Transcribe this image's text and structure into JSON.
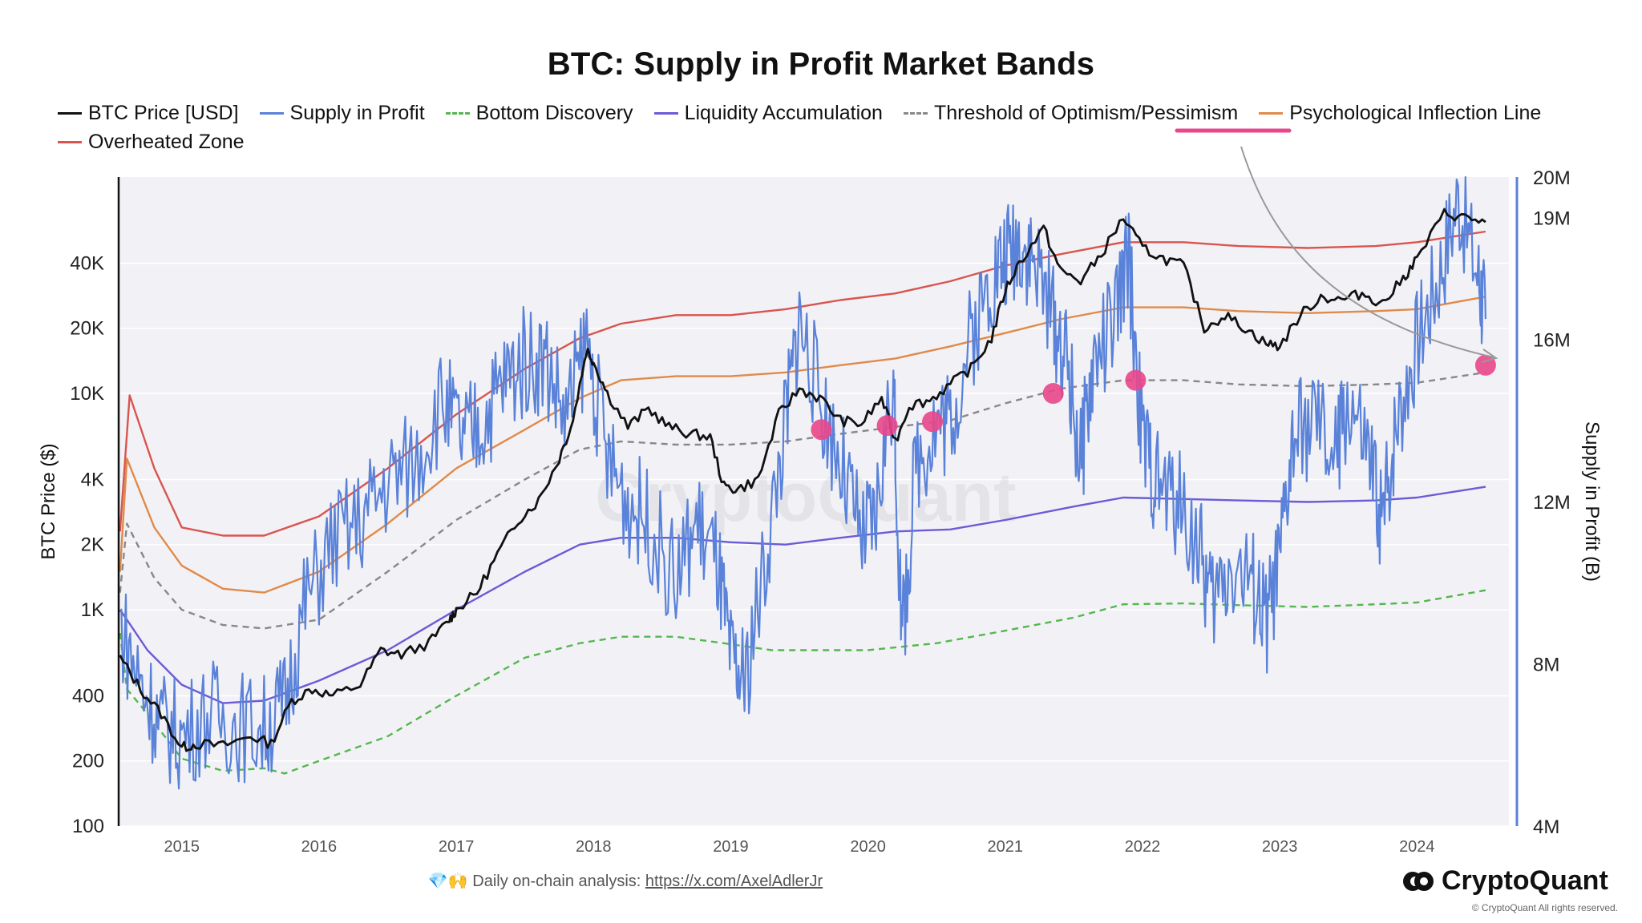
{
  "chart_data": {
    "type": "line",
    "title": "BTC: Supply in Profit Market Bands",
    "ylabel_left": "BTC Price ($)",
    "ylabel_right": "Supply in Profit (B)",
    "y_left_scale": "log",
    "y_left_ticks": [
      "40K",
      "20K",
      "10K",
      "4K",
      "2K",
      "1K",
      "400",
      "200",
      "100"
    ],
    "y_left_tick_values": [
      40000,
      20000,
      10000,
      4000,
      2000,
      1000,
      400,
      200,
      100
    ],
    "y_left_range": [
      100,
      100000
    ],
    "y_right_ticks": [
      "20M",
      "19M",
      "16M",
      "12M",
      "8M",
      "4M"
    ],
    "y_right_tick_values": [
      20000000,
      19000000,
      16000000,
      12000000,
      8000000,
      4000000
    ],
    "y_right_range": [
      4000000,
      20000000
    ],
    "x_ticks": [
      "2015",
      "2016",
      "2017",
      "2018",
      "2019",
      "2020",
      "2021",
      "2022",
      "2023",
      "2024"
    ],
    "x_range": [
      2014.54,
      2024.67
    ],
    "grid": true,
    "legend_position": "top-left",
    "watermark": "CryptoQuant",
    "series": [
      {
        "name": "BTC Price [USD]",
        "color": "#111111",
        "dash": "solid",
        "x": [
          2014.55,
          2014.7,
          2014.85,
          2015.0,
          2015.1,
          2015.3,
          2015.5,
          2015.65,
          2015.8,
          2015.95,
          2016.1,
          2016.3,
          2016.45,
          2016.6,
          2016.8,
          2016.95,
          2017.0,
          2017.15,
          2017.3,
          2017.45,
          2017.6,
          2017.75,
          2017.85,
          2017.95,
          2018.0,
          2018.1,
          2018.25,
          2018.4,
          2018.55,
          2018.7,
          2018.85,
          2018.95,
          2019.05,
          2019.2,
          2019.35,
          2019.5,
          2019.65,
          2019.8,
          2019.95,
          2020.1,
          2020.2,
          2020.3,
          2020.45,
          2020.6,
          2020.75,
          2020.9,
          2021.0,
          2021.1,
          2021.28,
          2021.4,
          2021.55,
          2021.7,
          2021.86,
          2022.0,
          2022.15,
          2022.3,
          2022.45,
          2022.6,
          2022.75,
          2022.9,
          2023.0,
          2023.15,
          2023.3,
          2023.45,
          2023.6,
          2023.75,
          2023.9,
          2024.0,
          2024.2,
          2024.35,
          2024.5
        ],
        "y": [
          600,
          430,
          330,
          230,
          240,
          235,
          260,
          240,
          380,
          430,
          400,
          450,
          650,
          620,
          700,
          900,
          1000,
          1200,
          1800,
          2600,
          3200,
          5000,
          7500,
          16000,
          14000,
          10000,
          7000,
          8500,
          7000,
          6500,
          6300,
          3700,
          3600,
          4000,
          8000,
          10500,
          9500,
          7500,
          7200,
          9500,
          6000,
          8800,
          9300,
          11000,
          13000,
          18000,
          30000,
          40000,
          58000,
          37000,
          33000,
          44000,
          65000,
          47000,
          42000,
          39000,
          20000,
          23000,
          20000,
          17000,
          16500,
          23000,
          28000,
          27000,
          29000,
          26000,
          34000,
          42000,
          68000,
          65000,
          62000
        ]
      },
      {
        "name": "Supply in Profit",
        "color": "#5a82d9",
        "dash": "solid",
        "x": [
          2014.55,
          2014.7,
          2014.85,
          2015.0,
          2015.2,
          2015.4,
          2015.6,
          2015.75,
          2015.9,
          2016.1,
          2016.3,
          2016.5,
          2016.7,
          2016.9,
          2017.05,
          2017.2,
          2017.35,
          2017.5,
          2017.65,
          2017.8,
          2017.95,
          2018.1,
          2018.25,
          2018.4,
          2018.6,
          2018.75,
          2018.9,
          2019.0,
          2019.1,
          2019.25,
          2019.4,
          2019.5,
          2019.65,
          2019.8,
          2019.95,
          2020.05,
          2020.18,
          2020.25,
          2020.35,
          2020.5,
          2020.6,
          2020.75,
          2020.9,
          2021.0,
          2021.1,
          2021.2,
          2021.35,
          2021.45,
          2021.55,
          2021.65,
          2021.8,
          2021.9,
          2022.0,
          2022.1,
          2022.25,
          2022.4,
          2022.5,
          2022.65,
          2022.8,
          2022.9,
          2023.0,
          2023.1,
          2023.25,
          2023.4,
          2023.5,
          2023.65,
          2023.75,
          2023.85,
          2024.0,
          2024.15,
          2024.3,
          2024.45,
          2024.5
        ],
        "y": [
          9000000,
          7500000,
          6500000,
          6200000,
          6800000,
          6500000,
          6400000,
          7000000,
          9500000,
          11000000,
          11500000,
          12500000,
          13000000,
          14500000,
          13500000,
          14000000,
          15000000,
          15500000,
          15500000,
          14000000,
          16000000,
          13000000,
          12000000,
          11500000,
          10000000,
          11500000,
          10500000,
          8000000,
          7500000,
          10500000,
          14000000,
          16500000,
          14500000,
          13000000,
          11000000,
          11500000,
          15000000,
          8500000,
          13000000,
          14000000,
          14000000,
          16000000,
          17500000,
          18000000,
          18500000,
          18000000,
          16500000,
          15500000,
          13000000,
          15500000,
          16500000,
          18000000,
          13500000,
          12500000,
          12000000,
          11000000,
          9500000,
          10500000,
          10000000,
          9000000,
          10500000,
          13500000,
          14000000,
          13000000,
          14500000,
          13000000,
          11500000,
          14000000,
          16000000,
          17500000,
          19500000,
          17500000,
          16500000
        ]
      },
      {
        "name": "Bottom Discovery",
        "color": "#55b64f",
        "dash": "dashed",
        "x": [
          2014.55,
          2014.6,
          2014.75,
          2015.0,
          2015.3,
          2015.6,
          2015.75,
          2016.0,
          2016.5,
          2017.0,
          2017.5,
          2017.9,
          2018.2,
          2018.6,
          2018.95,
          2019.3,
          2019.7,
          2020.0,
          2020.5,
          2021.0,
          2021.5,
          2021.86,
          2022.3,
          2022.7,
          2023.2,
          2023.7,
          2024.0,
          2024.5
        ],
        "y": [
          780,
          430,
          330,
          205,
          180,
          185,
          175,
          200,
          260,
          400,
          600,
          700,
          750,
          750,
          700,
          650,
          650,
          650,
          700,
          800,
          920,
          1060,
          1070,
          1050,
          1030,
          1060,
          1080,
          1230
        ]
      },
      {
        "name": "Liquidity Accumulation",
        "color": "#6b5bd6",
        "dash": "solid",
        "x": [
          2014.55,
          2014.6,
          2014.75,
          2015.0,
          2015.3,
          2015.6,
          2016.0,
          2016.5,
          2017.0,
          2017.5,
          2017.9,
          2018.2,
          2018.6,
          2019.0,
          2019.4,
          2019.8,
          2020.2,
          2020.6,
          2021.0,
          2021.5,
          2021.86,
          2022.3,
          2022.7,
          2023.2,
          2023.7,
          2024.0,
          2024.5
        ],
        "y": [
          1000,
          900,
          650,
          450,
          370,
          380,
          470,
          650,
          1000,
          1500,
          2000,
          2150,
          2150,
          2050,
          2000,
          2150,
          2300,
          2350,
          2600,
          3000,
          3300,
          3250,
          3200,
          3150,
          3200,
          3300,
          3700
        ]
      },
      {
        "name": "Threshold of Optimism/Pessimism",
        "color": "#888888",
        "dash": "dashed",
        "x": [
          2014.55,
          2014.6,
          2014.8,
          2015.0,
          2015.3,
          2015.6,
          2016.0,
          2016.5,
          2017.0,
          2017.5,
          2017.9,
          2018.2,
          2018.6,
          2019.0,
          2019.4,
          2019.8,
          2020.2,
          2020.6,
          2021.0,
          2021.4,
          2021.86,
          2022.3,
          2022.7,
          2023.2,
          2023.7,
          2024.0,
          2024.5
        ],
        "y": [
          1200,
          2500,
          1400,
          1000,
          850,
          820,
          900,
          1500,
          2600,
          4000,
          5500,
          6000,
          5800,
          5800,
          6000,
          6500,
          7000,
          7500,
          9000,
          10500,
          11500,
          11500,
          11000,
          10800,
          11000,
          11200,
          12500
        ]
      },
      {
        "name": "Psychological Inflection Line",
        "color": "#e08a4a",
        "dash": "solid",
        "x": [
          2014.55,
          2014.6,
          2014.8,
          2015.0,
          2015.3,
          2015.6,
          2016.0,
          2016.5,
          2017.0,
          2017.5,
          2017.9,
          2018.2,
          2018.6,
          2019.0,
          2019.4,
          2019.8,
          2020.2,
          2020.6,
          2021.0,
          2021.4,
          2021.86,
          2022.3,
          2022.7,
          2023.2,
          2023.7,
          2024.0,
          2024.5
        ],
        "y": [
          1500,
          5000,
          2400,
          1600,
          1250,
          1200,
          1500,
          2500,
          4500,
          6800,
          9500,
          11500,
          12000,
          12000,
          12500,
          13500,
          14500,
          16500,
          19000,
          22000,
          25000,
          25000,
          24000,
          23500,
          24000,
          24500,
          28000
        ]
      },
      {
        "name": "Overheated Zone",
        "color": "#d9544f",
        "dash": "solid",
        "x": [
          2014.55,
          2014.62,
          2014.8,
          2015.0,
          2015.3,
          2015.6,
          2016.0,
          2016.5,
          2017.0,
          2017.5,
          2017.9,
          2018.2,
          2018.6,
          2019.0,
          2019.4,
          2019.8,
          2020.2,
          2020.6,
          2021.0,
          2021.4,
          2021.86,
          2022.3,
          2022.7,
          2023.2,
          2023.7,
          2024.0,
          2024.5
        ],
        "y": [
          2300,
          9800,
          4500,
          2400,
          2200,
          2200,
          2700,
          4500,
          8000,
          13000,
          18000,
          21000,
          23000,
          23000,
          24500,
          27000,
          29000,
          33000,
          39000,
          44000,
          50000,
          50000,
          48000,
          47000,
          48000,
          50000,
          56000
        ]
      }
    ],
    "highlight_points": [
      {
        "x": 2019.66,
        "y": 6800
      },
      {
        "x": 2020.14,
        "y": 7100
      },
      {
        "x": 2020.47,
        "y": 7400
      },
      {
        "x": 2021.35,
        "y": 10000
      },
      {
        "x": 2021.95,
        "y": 11500
      },
      {
        "x": 2024.5,
        "y": 13500
      }
    ],
    "highlight_color": "#e8478b",
    "annotation_underline_color": "#e8478b",
    "annotation_arrow_color": "#999999"
  },
  "footer": {
    "icons": "💎🙌",
    "text": "Daily on-chain analysis: ",
    "link": "https://x.com/AxelAdlerJr"
  },
  "brand": {
    "name": "CryptoQuant",
    "copyright": "© CryptoQuant All rights reserved."
  }
}
